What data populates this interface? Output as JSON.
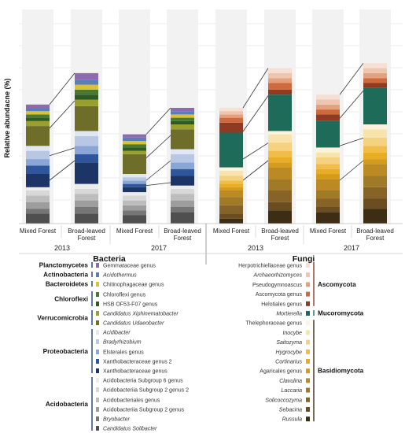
{
  "chart_data": {
    "type": "bar",
    "ylabel": "Relative abundacne (%)",
    "years": [
      "2013",
      "2017"
    ],
    "categories": [
      "Mixed Forest",
      "Broad-leaved Forest",
      "Mixed Forest",
      "Broad-leaved Forest",
      "Mixed Forest",
      "Broad-leaved Forest",
      "Mixed Forest",
      "Broad-leaved Forest"
    ],
    "panels": [
      {
        "kingdom": "Bacteria",
        "groups": [
          {
            "name": "Planctomycetes",
            "taxa": [
              {
                "label": "Gemmataceae genus",
                "italic": false,
                "color": "#8c6bb1"
              }
            ]
          },
          {
            "name": "Actinobacteria",
            "taxa": [
              {
                "label": "Acidothermus",
                "italic": true,
                "color": "#5b7db8"
              }
            ]
          },
          {
            "name": "Bacteroidetes",
            "taxa": [
              {
                "label": "Chitinophagaceae genus",
                "italic": false,
                "color": "#d8c23a"
              }
            ]
          },
          {
            "name": "Chloroflexi",
            "taxa": [
              {
                "label": "Chloroflexi genus",
                "italic": false,
                "color": "#4a7a30"
              },
              {
                "label": "HSB OF53-F07 genus",
                "italic": false,
                "color": "#2d5a25"
              }
            ]
          },
          {
            "name": "Verrucomicrobia",
            "taxa": [
              {
                "label": "Candidatus Xiphinematobacter",
                "italic": true,
                "color": "#9aa02e"
              },
              {
                "label": "Candidatus Udaeobacter",
                "italic": true,
                "color": "#6e6e2a"
              }
            ]
          },
          {
            "name": "Proteobacteria",
            "taxa": [
              {
                "label": "Acidibacter",
                "italic": true,
                "color": "#e2e8f3"
              },
              {
                "label": "Bradyrhizobium",
                "italic": true,
                "color": "#b8c8e4"
              },
              {
                "label": "Elsterales genus",
                "italic": false,
                "color": "#8aa6d6"
              },
              {
                "label": "Xanthobacteraceae genus 2",
                "italic": false,
                "color": "#2f559b"
              },
              {
                "label": "Xanthobacteraceae genus",
                "italic": false,
                "color": "#1d3566"
              }
            ]
          },
          {
            "name": "Acidobacteria",
            "taxa": [
              {
                "label": "Acidobacteria Subgroup 6 genus",
                "italic": false,
                "color": "#ececec"
              },
              {
                "label": "Acidobacteriia Subgroup 2 genus 2",
                "italic": false,
                "color": "#d7d7d7"
              },
              {
                "label": "Acidobacteriales genus",
                "italic": false,
                "color": "#bdbdbd"
              },
              {
                "label": "Acidobacteriia Subgroup 2 genus",
                "italic": false,
                "color": "#9d9d9d"
              },
              {
                "label": "Bryobacter",
                "italic": true,
                "color": "#767676"
              },
              {
                "label": "Candidatus Solibacter",
                "italic": true,
                "color": "#4f4f4f"
              }
            ]
          }
        ],
        "series_values": [
          [
            2,
            4,
            2,
            2
          ],
          [
            2,
            3,
            2,
            2
          ],
          [
            2,
            3,
            2,
            2
          ],
          [
            2,
            3,
            2,
            2
          ],
          [
            2,
            3,
            2,
            2
          ],
          [
            3,
            4,
            2,
            3
          ],
          [
            12,
            15,
            12,
            12
          ],
          [
            3,
            3,
            2,
            3
          ],
          [
            5,
            6,
            2,
            5
          ],
          [
            4,
            5,
            2,
            4
          ],
          [
            5,
            5,
            2,
            4
          ],
          [
            8,
            13,
            3,
            6
          ],
          [
            2,
            3,
            2,
            2
          ],
          [
            3,
            3,
            3,
            3
          ],
          [
            4,
            4,
            3,
            4
          ],
          [
            4,
            4,
            3,
            4
          ],
          [
            3,
            4,
            3,
            3
          ],
          [
            6,
            6,
            5,
            7
          ]
        ]
      },
      {
        "kingdom": "Fungi",
        "groups": [
          {
            "name": "Ascomycota",
            "taxa": [
              {
                "label": "Herpotrichiellaceae genus",
                "italic": false,
                "color": "#f6dfd4"
              },
              {
                "label": "Archaeorhizomyces",
                "italic": true,
                "color": "#efc5ad"
              },
              {
                "label": "Pseudogymnoascus",
                "italic": false,
                "color": "#e4a17f"
              },
              {
                "label": "Ascomycota genus",
                "italic": false,
                "color": "#cf6a3e"
              },
              {
                "label": "Helotiales genus",
                "italic": false,
                "color": "#8f3a22"
              }
            ]
          },
          {
            "name": "Mucoromycota",
            "taxa": [
              {
                "label": "Mortierella",
                "italic": true,
                "color": "#1e6b5a"
              }
            ]
          },
          {
            "name": "Basidiomycota",
            "taxa": [
              {
                "label": "Thelephoraceae genus",
                "italic": false,
                "color": "#fcf3de"
              },
              {
                "label": "Inocybe",
                "italic": true,
                "color": "#f8e3ac"
              },
              {
                "label": "Saitozyma",
                "italic": true,
                "color": "#f4d27f"
              },
              {
                "label": "Hygrocybe",
                "italic": true,
                "color": "#f0bd48"
              },
              {
                "label": "Cortinarius",
                "italic": true,
                "color": "#e8ad24"
              },
              {
                "label": "Agaricales genus",
                "italic": false,
                "color": "#d49c1c"
              },
              {
                "label": "Clavulina",
                "italic": true,
                "color": "#bb8a24"
              },
              {
                "label": "Laccaria",
                "italic": true,
                "color": "#a07a26"
              },
              {
                "label": "Solicoccozyma",
                "italic": true,
                "color": "#876327"
              },
              {
                "label": "Sebacina",
                "italic": true,
                "color": "#6b4d22"
              },
              {
                "label": "Russula",
                "italic": true,
                "color": "#3e2d15"
              }
            ]
          }
        ],
        "series_values": [
          [
            2,
            3,
            3,
            3
          ],
          [
            2,
            3,
            3,
            3
          ],
          [
            2,
            3,
            3,
            3
          ],
          [
            3,
            4,
            3,
            3
          ],
          [
            6,
            3,
            4,
            3
          ],
          [
            21,
            22,
            16,
            22
          ],
          [
            2,
            2,
            3,
            3
          ],
          [
            3,
            5,
            3,
            5
          ],
          [
            3,
            5,
            4,
            5
          ],
          [
            2,
            4,
            3,
            4
          ],
          [
            2,
            3,
            3,
            4
          ],
          [
            2,
            3,
            3,
            3
          ],
          [
            4,
            7,
            7,
            7
          ],
          [
            5,
            7,
            5,
            7
          ],
          [
            5,
            7,
            5,
            7
          ],
          [
            3,
            5,
            3,
            6
          ],
          [
            3,
            8,
            7,
            9
          ]
        ]
      }
    ]
  }
}
